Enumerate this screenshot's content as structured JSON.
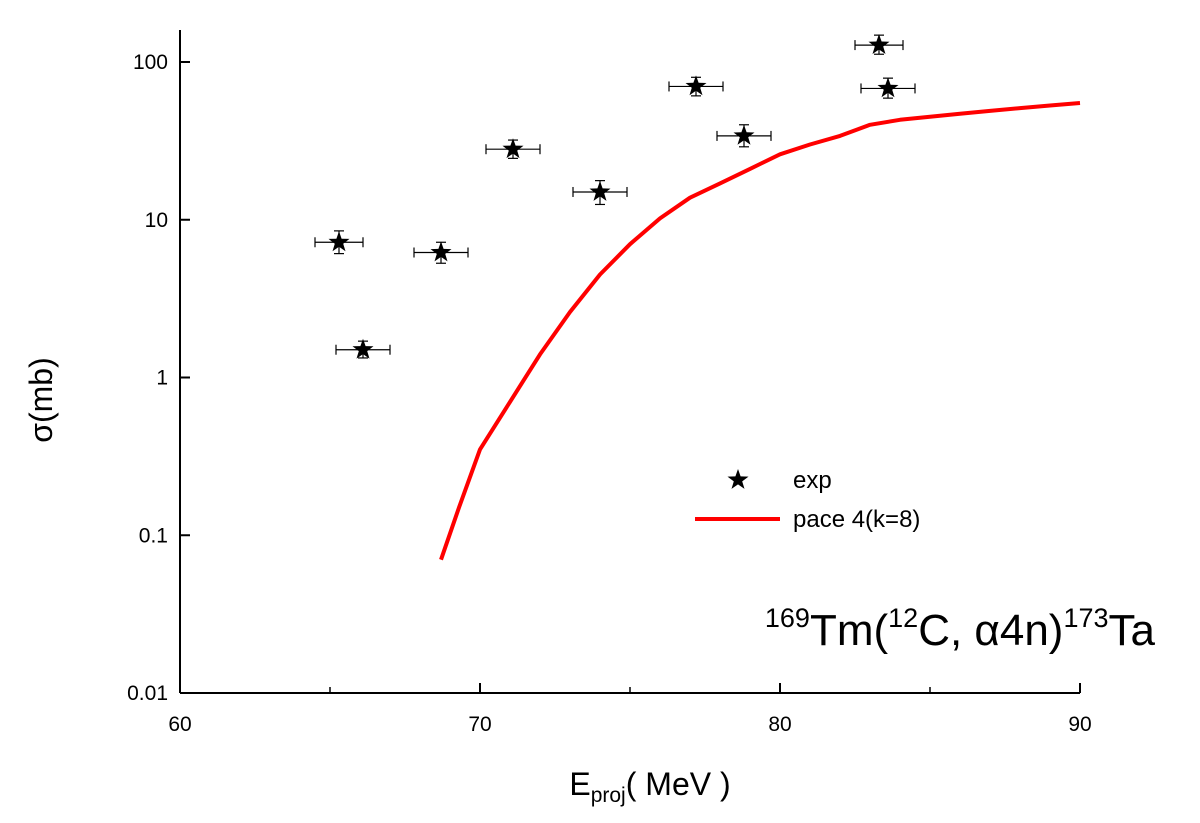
{
  "chart_data": {
    "type": "scatter",
    "x_scale": "linear",
    "y_scale": "log",
    "xlim": [
      60,
      90
    ],
    "ylim": [
      0.01,
      200
    ],
    "x_ticks": [
      60,
      70,
      80,
      90
    ],
    "x_tick_labels": [
      "60",
      "70",
      "80",
      "90"
    ],
    "y_ticks": [
      0.01,
      0.1,
      1,
      10,
      100
    ],
    "y_tick_labels": [
      "0.01",
      "0.1",
      "1",
      "10",
      "100"
    ],
    "xlabel": {
      "main": "E",
      "sub": "proj",
      "rest": "( MeV )"
    },
    "ylabel": "σ(mb)",
    "grid": false,
    "legend_position": "center-right",
    "series": [
      {
        "name": "exp",
        "kind": "points",
        "marker": "star",
        "color": "#000000",
        "points": [
          {
            "x": 65.3,
            "y": 7.2,
            "x_err": 0.8,
            "y_err_low": 1.1,
            "y_err_high": 1.3
          },
          {
            "x": 66.1,
            "y": 1.5,
            "x_err": 0.9,
            "y_err_low": 0.17,
            "y_err_high": 0.2
          },
          {
            "x": 68.7,
            "y": 6.2,
            "x_err": 0.9,
            "y_err_low": 0.9,
            "y_err_high": 1.0
          },
          {
            "x": 71.1,
            "y": 28,
            "x_err": 0.9,
            "y_err_low": 3.5,
            "y_err_high": 4
          },
          {
            "x": 74.0,
            "y": 15,
            "x_err": 0.9,
            "y_err_low": 2.5,
            "y_err_high": 2.7
          },
          {
            "x": 77.2,
            "y": 70,
            "x_err": 0.9,
            "y_err_low": 9,
            "y_err_high": 10
          },
          {
            "x": 78.8,
            "y": 34,
            "x_err": 0.9,
            "y_err_low": 5,
            "y_err_high": 6
          },
          {
            "x": 83.3,
            "y": 128,
            "x_err": 0.8,
            "y_err_low": 16,
            "y_err_high": 20
          },
          {
            "x": 83.6,
            "y": 68,
            "x_err": 0.9,
            "y_err_low": 9,
            "y_err_high": 11
          }
        ]
      },
      {
        "name": "pace 4(k=8)",
        "kind": "line",
        "color": "#ff0000",
        "x": [
          68.7,
          69.3,
          70.0,
          71.0,
          72.0,
          73.0,
          74.0,
          75.0,
          76.0,
          77.0,
          78.0,
          79.0,
          80.0,
          81.0,
          82.0,
          83.0,
          84.0,
          85.0,
          86.0,
          87.0,
          88.0,
          89.0,
          90.0
        ],
        "y": [
          0.07,
          0.15,
          0.35,
          0.7,
          1.4,
          2.6,
          4.5,
          7.0,
          10.2,
          13.8,
          17.0,
          21.0,
          26.0,
          30.0,
          34.0,
          40.0,
          43.0,
          45.0,
          47.0,
          49.0,
          51.0,
          53.0,
          55.0
        ]
      }
    ],
    "annotation": {
      "parts": [
        {
          "text": "169",
          "sup": true
        },
        {
          "text": "Tm(",
          "sup": false
        },
        {
          "text": "12",
          "sup": true
        },
        {
          "text": "C, α4n)",
          "sup": false
        },
        {
          "text": "173",
          "sup": true
        },
        {
          "text": "Ta",
          "sup": false
        }
      ]
    }
  }
}
